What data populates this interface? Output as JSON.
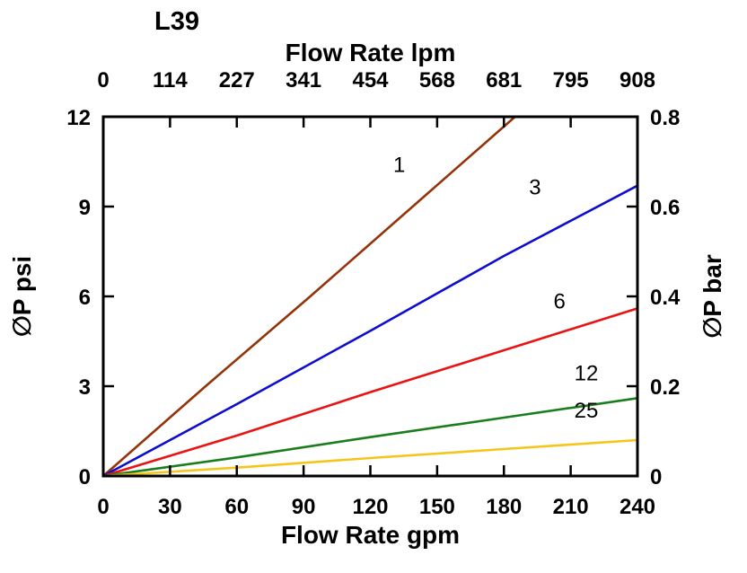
{
  "page": {
    "title": "L39"
  },
  "chart_data": {
    "type": "line",
    "title": "L39",
    "top_axis": {
      "label": "Flow Rate lpm",
      "ticks": [
        0,
        114,
        227,
        341,
        454,
        568,
        681,
        795,
        908
      ],
      "range": [
        0,
        908
      ]
    },
    "bottom_axis": {
      "label": "Flow Rate gpm",
      "ticks": [
        0,
        30,
        60,
        90,
        120,
        150,
        180,
        210,
        240
      ],
      "range": [
        0,
        240
      ]
    },
    "left_axis": {
      "label": "∅P psi",
      "ticks": [
        0,
        3,
        6,
        9,
        12
      ],
      "range": [
        0,
        12
      ]
    },
    "right_axis": {
      "label": "∅P bar",
      "ticks": [
        0,
        0.2,
        0.4,
        0.6,
        0.8
      ],
      "range": [
        0,
        0.8
      ]
    },
    "grid": false,
    "series": [
      {
        "name": "1",
        "color": "#93330A",
        "x": [
          0,
          46,
          93,
          139,
          185
        ],
        "y": [
          0,
          3.0,
          6.0,
          9.0,
          12.0
        ],
        "label": {
          "x": 133,
          "y": 10.15
        }
      },
      {
        "name": "3",
        "color": "#0D0DCE",
        "x": [
          0,
          60,
          120,
          180,
          240
        ],
        "y": [
          0,
          2.4,
          4.85,
          7.35,
          9.7
        ],
        "label": {
          "x": 194,
          "y": 9.4
        }
      },
      {
        "name": "6",
        "color": "#E81414",
        "x": [
          0,
          60,
          120,
          180,
          240
        ],
        "y": [
          0,
          1.35,
          2.8,
          4.2,
          5.6
        ],
        "label": {
          "x": 205,
          "y": 5.6
        }
      },
      {
        "name": "12",
        "color": "#1B7D1B",
        "x": [
          0,
          60,
          120,
          180,
          240
        ],
        "y": [
          0,
          0.62,
          1.3,
          1.95,
          2.6
        ],
        "label": {
          "x": 217,
          "y": 3.2
        }
      },
      {
        "name": "25",
        "color": "#F4C61C",
        "x": [
          0,
          60,
          120,
          180,
          240
        ],
        "y": [
          0,
          0.28,
          0.6,
          0.9,
          1.2
        ],
        "label": {
          "x": 217,
          "y": 1.95
        }
      }
    ]
  }
}
